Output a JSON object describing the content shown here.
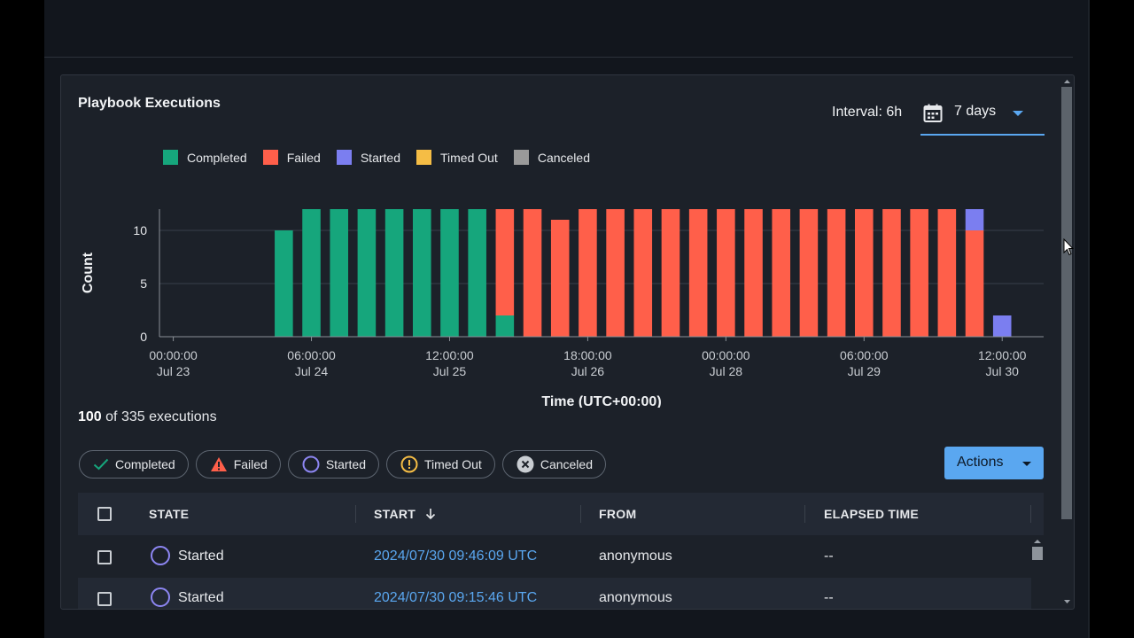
{
  "panel": {
    "title": "Playbook Executions",
    "interval_label": "Interval: 6h",
    "range_value": "7 days"
  },
  "colors": {
    "completed": "#16a67c",
    "failed": "#ff5f4a",
    "started": "#7b7ef0",
    "timed_out": "#f5bd45",
    "canceled": "#9a9a9a",
    "accent": "#5aa7f0"
  },
  "legend": [
    {
      "label": "Completed",
      "color": "#16a67c"
    },
    {
      "label": "Failed",
      "color": "#ff5f4a"
    },
    {
      "label": "Started",
      "color": "#7b7ef0"
    },
    {
      "label": "Timed Out",
      "color": "#f5bd45"
    },
    {
      "label": "Canceled",
      "color": "#9a9a9a"
    }
  ],
  "chart_data": {
    "type": "bar",
    "stacked": true,
    "xlabel": "Time (UTC+00:00)",
    "ylabel": "Count",
    "ylim": [
      0,
      12
    ],
    "yticks": [
      0,
      5,
      10
    ],
    "grid": true,
    "legend_position": "top-left",
    "x_ticks": [
      {
        "time": "00:00:00",
        "date": "Jul 23"
      },
      {
        "time": "06:00:00",
        "date": "Jul 24"
      },
      {
        "time": "12:00:00",
        "date": "Jul 25"
      },
      {
        "time": "18:00:00",
        "date": "Jul 26"
      },
      {
        "time": "00:00:00",
        "date": "Jul 28"
      },
      {
        "time": "06:00:00",
        "date": "Jul 29"
      },
      {
        "time": "12:00:00",
        "date": "Jul 30"
      }
    ],
    "categories": [
      "2024-07-23 00:00",
      "2024-07-23 06:00",
      "2024-07-23 12:00",
      "2024-07-23 18:00",
      "2024-07-24 00:00",
      "2024-07-24 06:00",
      "2024-07-24 12:00",
      "2024-07-24 18:00",
      "2024-07-25 00:00",
      "2024-07-25 06:00",
      "2024-07-25 12:00",
      "2024-07-25 18:00",
      "2024-07-26 00:00",
      "2024-07-26 06:00",
      "2024-07-26 12:00",
      "2024-07-26 18:00",
      "2024-07-27 00:00",
      "2024-07-27 06:00",
      "2024-07-27 12:00",
      "2024-07-27 18:00",
      "2024-07-28 00:00",
      "2024-07-28 06:00",
      "2024-07-28 12:00",
      "2024-07-28 18:00",
      "2024-07-29 00:00",
      "2024-07-29 06:00",
      "2024-07-29 12:00",
      "2024-07-29 18:00",
      "2024-07-30 00:00",
      "2024-07-30 06:00",
      "2024-07-30 12:00",
      "2024-07-30 18:00"
    ],
    "series": [
      {
        "name": "Completed",
        "values": [
          0,
          0,
          0,
          0,
          10,
          12,
          12,
          12,
          12,
          12,
          12,
          12,
          2,
          0,
          0,
          0,
          0,
          0,
          0,
          0,
          0,
          0,
          0,
          0,
          0,
          0,
          0,
          0,
          0,
          0,
          0,
          0
        ]
      },
      {
        "name": "Failed",
        "values": [
          0,
          0,
          0,
          0,
          0,
          0,
          0,
          0,
          0,
          0,
          0,
          0,
          10,
          12,
          11,
          12,
          12,
          12,
          12,
          12,
          12,
          12,
          12,
          12,
          12,
          12,
          12,
          12,
          12,
          10,
          0,
          0
        ]
      },
      {
        "name": "Started",
        "values": [
          0,
          0,
          0,
          0,
          0,
          0,
          0,
          0,
          0,
          0,
          0,
          0,
          0,
          0,
          0,
          0,
          0,
          0,
          0,
          0,
          0,
          0,
          0,
          0,
          0,
          0,
          0,
          0,
          0,
          2,
          2,
          0
        ]
      },
      {
        "name": "Timed Out",
        "values": [
          0,
          0,
          0,
          0,
          0,
          0,
          0,
          0,
          0,
          0,
          0,
          0,
          0,
          0,
          0,
          0,
          0,
          0,
          0,
          0,
          0,
          0,
          0,
          0,
          0,
          0,
          0,
          0,
          0,
          0,
          0,
          0
        ]
      },
      {
        "name": "Canceled",
        "values": [
          0,
          0,
          0,
          0,
          0,
          0,
          0,
          0,
          0,
          0,
          0,
          0,
          0,
          0,
          0,
          0,
          0,
          0,
          0,
          0,
          0,
          0,
          0,
          0,
          0,
          0,
          0,
          0,
          0,
          0,
          0,
          0
        ]
      }
    ]
  },
  "executions": {
    "shown": "100",
    "summary": "of 335 executions"
  },
  "filters": [
    {
      "label": "Completed",
      "icon": "check-icon"
    },
    {
      "label": "Failed",
      "icon": "warning-icon"
    },
    {
      "label": "Started",
      "icon": "circle-icon"
    },
    {
      "label": "Timed Out",
      "icon": "alert-circle-icon"
    },
    {
      "label": "Canceled",
      "icon": "cancel-circle-icon"
    }
  ],
  "actions_label": "Actions",
  "table": {
    "columns": {
      "state": "STATE",
      "start": "START",
      "from": "FROM",
      "elapsed": "ELAPSED TIME"
    },
    "sort_icon": "arrow-down-icon",
    "rows": [
      {
        "state": "Started",
        "start": "2024/07/30 09:46:09 UTC",
        "from": "anonymous",
        "elapsed": "--"
      },
      {
        "state": "Started",
        "start": "2024/07/30 09:15:46 UTC",
        "from": "anonymous",
        "elapsed": "--"
      }
    ]
  }
}
